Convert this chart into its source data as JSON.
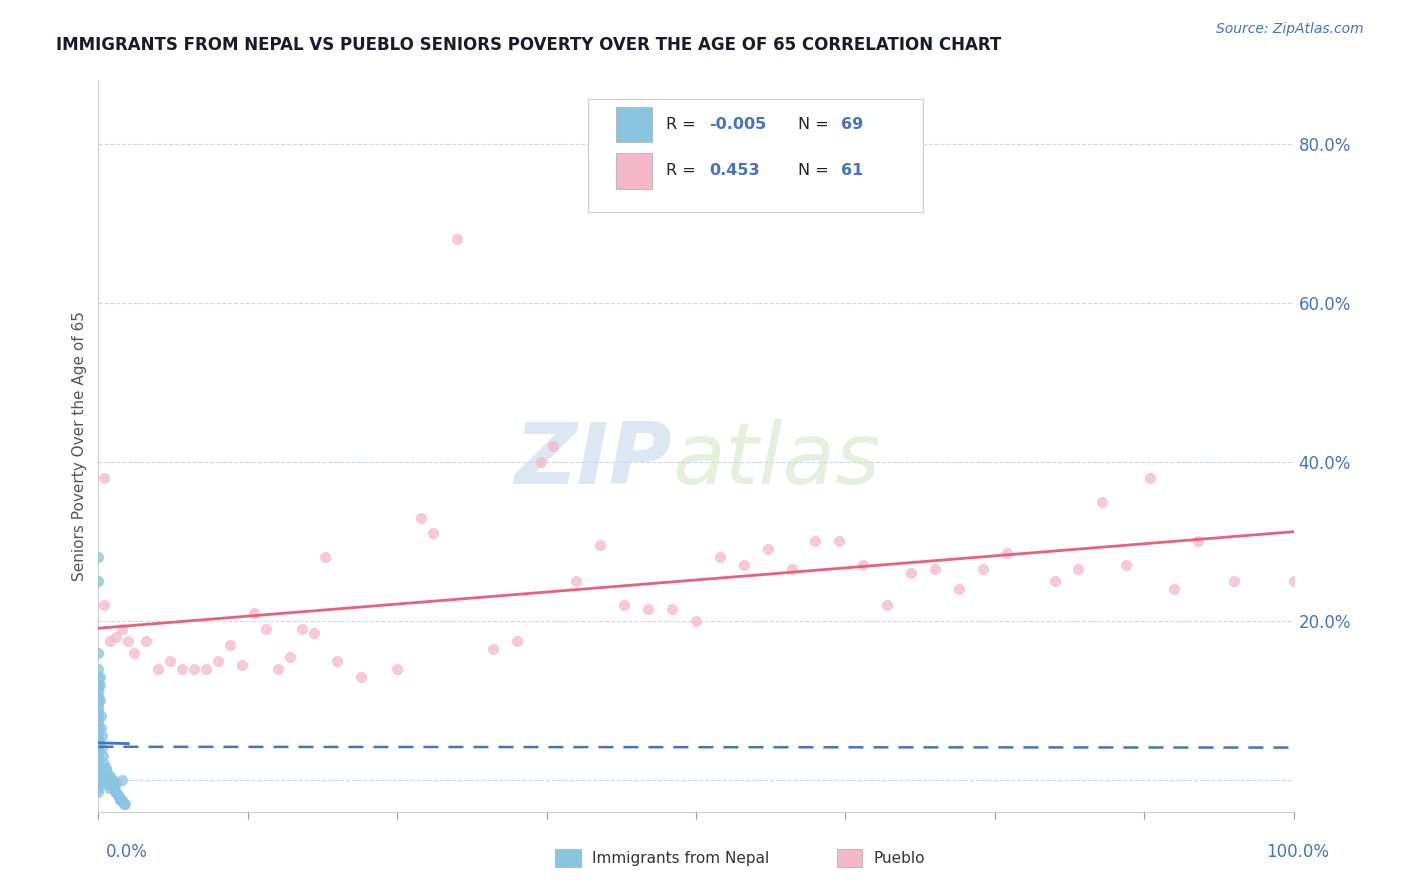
{
  "title": "IMMIGRANTS FROM NEPAL VS PUEBLO SENIORS POVERTY OVER THE AGE OF 65 CORRELATION CHART",
  "source": "Source: ZipAtlas.com",
  "ylabel": "Seniors Poverty Over the Age of 65",
  "nepal_color": "#89c4e1",
  "pueblo_color": "#f4b8c8",
  "nepal_line_color": "#4472c4",
  "pueblo_line_color": "#e8607a",
  "nepal_r": -0.005,
  "nepal_n": 69,
  "pueblo_r": 0.453,
  "pueblo_n": 61,
  "ytick_vals": [
    0.0,
    0.2,
    0.4,
    0.6,
    0.8
  ],
  "ytick_labels": [
    "",
    "20.0%",
    "40.0%",
    "60.0%",
    "80.0%"
  ],
  "xlim": [
    0.0,
    1.0
  ],
  "ylim": [
    -0.04,
    0.88
  ],
  "watermark_zip": "ZIP",
  "watermark_atlas": "atlas",
  "title_color": "#1a1a2e",
  "axis_color": "#4472c4",
  "source_color": "#4472c4",
  "nepal_scatter_x": [
    0.0,
    0.0,
    0.0,
    0.0,
    0.0,
    0.0,
    0.0,
    0.0,
    0.0,
    0.0,
    0.0,
    0.0,
    0.0,
    0.0,
    0.0,
    0.0,
    0.0,
    0.0,
    0.0,
    0.0,
    0.0,
    0.0,
    0.0,
    0.0,
    0.0,
    0.0,
    0.0,
    0.0,
    0.0,
    0.0,
    0.004,
    0.005,
    0.005,
    0.006,
    0.007,
    0.008,
    0.009,
    0.01,
    0.011,
    0.012,
    0.013,
    0.014,
    0.015,
    0.016,
    0.017,
    0.018,
    0.019,
    0.02,
    0.021,
    0.022,
    0.0,
    0.0,
    0.0,
    0.001,
    0.001,
    0.001,
    0.002,
    0.002,
    0.003,
    0.003,
    0.004,
    0.005,
    0.006,
    0.007,
    0.008,
    0.01,
    0.012,
    0.015,
    0.02
  ],
  "nepal_scatter_y": [
    0.14,
    0.13,
    0.12,
    0.115,
    0.11,
    0.105,
    0.1,
    0.095,
    0.09,
    0.085,
    0.08,
    0.075,
    0.07,
    0.065,
    0.06,
    0.055,
    0.05,
    0.045,
    0.04,
    0.035,
    0.03,
    0.025,
    0.02,
    0.015,
    0.01,
    0.005,
    0.0,
    -0.005,
    -0.01,
    -0.015,
    0.005,
    0.005,
    0.0,
    0.0,
    0.0,
    -0.005,
    -0.01,
    0.0,
    0.0,
    -0.005,
    -0.01,
    -0.015,
    -0.015,
    -0.02,
    -0.02,
    -0.025,
    -0.025,
    -0.025,
    -0.03,
    -0.03,
    0.16,
    0.25,
    0.28,
    0.13,
    0.12,
    0.1,
    0.08,
    0.065,
    0.055,
    0.04,
    0.03,
    0.02,
    0.015,
    0.01,
    0.005,
    0.005,
    0.0,
    -0.005,
    0.0
  ],
  "pueblo_scatter_x": [
    0.005,
    0.005,
    0.01,
    0.015,
    0.02,
    0.025,
    0.03,
    0.04,
    0.05,
    0.06,
    0.07,
    0.08,
    0.09,
    0.1,
    0.11,
    0.12,
    0.13,
    0.14,
    0.15,
    0.16,
    0.17,
    0.18,
    0.19,
    0.2,
    0.22,
    0.25,
    0.27,
    0.28,
    0.3,
    0.33,
    0.35,
    0.37,
    0.38,
    0.4,
    0.42,
    0.44,
    0.46,
    0.48,
    0.5,
    0.52,
    0.54,
    0.56,
    0.58,
    0.6,
    0.62,
    0.64,
    0.66,
    0.68,
    0.7,
    0.72,
    0.74,
    0.76,
    0.8,
    0.82,
    0.84,
    0.86,
    0.88,
    0.9,
    0.92,
    0.95,
    1.0
  ],
  "pueblo_scatter_y": [
    0.38,
    0.22,
    0.175,
    0.18,
    0.19,
    0.175,
    0.16,
    0.175,
    0.14,
    0.15,
    0.14,
    0.14,
    0.14,
    0.15,
    0.17,
    0.145,
    0.21,
    0.19,
    0.14,
    0.155,
    0.19,
    0.185,
    0.28,
    0.15,
    0.13,
    0.14,
    0.33,
    0.31,
    0.68,
    0.165,
    0.175,
    0.4,
    0.42,
    0.25,
    0.295,
    0.22,
    0.215,
    0.215,
    0.2,
    0.28,
    0.27,
    0.29,
    0.265,
    0.3,
    0.3,
    0.27,
    0.22,
    0.26,
    0.265,
    0.24,
    0.265,
    0.285,
    0.25,
    0.265,
    0.35,
    0.27,
    0.38,
    0.24,
    0.3,
    0.25,
    0.25
  ]
}
